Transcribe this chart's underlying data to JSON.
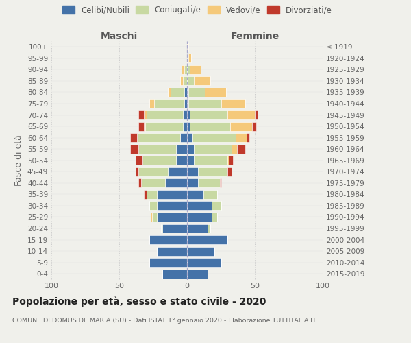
{
  "age_groups": [
    "100+",
    "95-99",
    "90-94",
    "85-89",
    "80-84",
    "75-79",
    "70-74",
    "65-69",
    "60-64",
    "55-59",
    "50-54",
    "45-49",
    "40-44",
    "35-39",
    "30-34",
    "25-29",
    "20-24",
    "15-19",
    "10-14",
    "5-9",
    "0-4"
  ],
  "birth_years": [
    "≤ 1919",
    "1920-1924",
    "1925-1929",
    "1930-1934",
    "1935-1939",
    "1940-1944",
    "1945-1949",
    "1950-1954",
    "1955-1959",
    "1960-1964",
    "1965-1969",
    "1970-1974",
    "1975-1979",
    "1980-1984",
    "1985-1989",
    "1990-1994",
    "1995-1999",
    "2000-2004",
    "2005-2009",
    "2010-2014",
    "2015-2019"
  ],
  "maschi": {
    "celibi": [
      0,
      0,
      0,
      0,
      2,
      2,
      3,
      3,
      5,
      8,
      8,
      14,
      16,
      22,
      22,
      22,
      18,
      28,
      22,
      28,
      18
    ],
    "coniugati": [
      0,
      0,
      2,
      3,
      10,
      22,
      27,
      28,
      32,
      28,
      25,
      22,
      18,
      8,
      6,
      4,
      1,
      0,
      0,
      0,
      0
    ],
    "vedovi": [
      0,
      0,
      2,
      2,
      2,
      4,
      2,
      1,
      0,
      0,
      0,
      0,
      0,
      0,
      0,
      1,
      0,
      0,
      0,
      0,
      0
    ],
    "divorziati": [
      0,
      0,
      0,
      0,
      0,
      0,
      4,
      4,
      5,
      6,
      5,
      2,
      2,
      2,
      0,
      0,
      0,
      0,
      0,
      0,
      0
    ]
  },
  "femmine": {
    "nubili": [
      0,
      0,
      0,
      0,
      1,
      1,
      2,
      2,
      4,
      5,
      5,
      8,
      8,
      12,
      18,
      18,
      15,
      30,
      20,
      25,
      15
    ],
    "coniugate": [
      0,
      1,
      2,
      5,
      12,
      24,
      28,
      30,
      32,
      28,
      25,
      22,
      16,
      10,
      7,
      4,
      2,
      0,
      0,
      0,
      0
    ],
    "vedove": [
      1,
      2,
      8,
      12,
      16,
      18,
      20,
      16,
      8,
      4,
      1,
      0,
      0,
      0,
      0,
      0,
      0,
      0,
      0,
      0,
      0
    ],
    "divorziate": [
      0,
      0,
      0,
      0,
      0,
      0,
      2,
      3,
      2,
      6,
      3,
      3,
      1,
      0,
      0,
      0,
      0,
      0,
      0,
      0,
      0
    ]
  },
  "colors": {
    "celibi_nubili": "#4472a8",
    "coniugati": "#c8d9a2",
    "vedovi": "#f5c97a",
    "divorziati": "#c0392b"
  },
  "xlim": 100,
  "title": "Popolazione per età, sesso e stato civile - 2020",
  "subtitle": "COMUNE DI DOMUS DE MARIA (SU) - Dati ISTAT 1° gennaio 2020 - Elaborazione TUTTITALIA.IT",
  "xlabel_left": "Maschi",
  "xlabel_right": "Femmine",
  "ylabel_left": "Fasce di età",
  "bg_color": "#f0f0eb",
  "bar_edge_color": "white",
  "bar_linewidth": 0.4
}
